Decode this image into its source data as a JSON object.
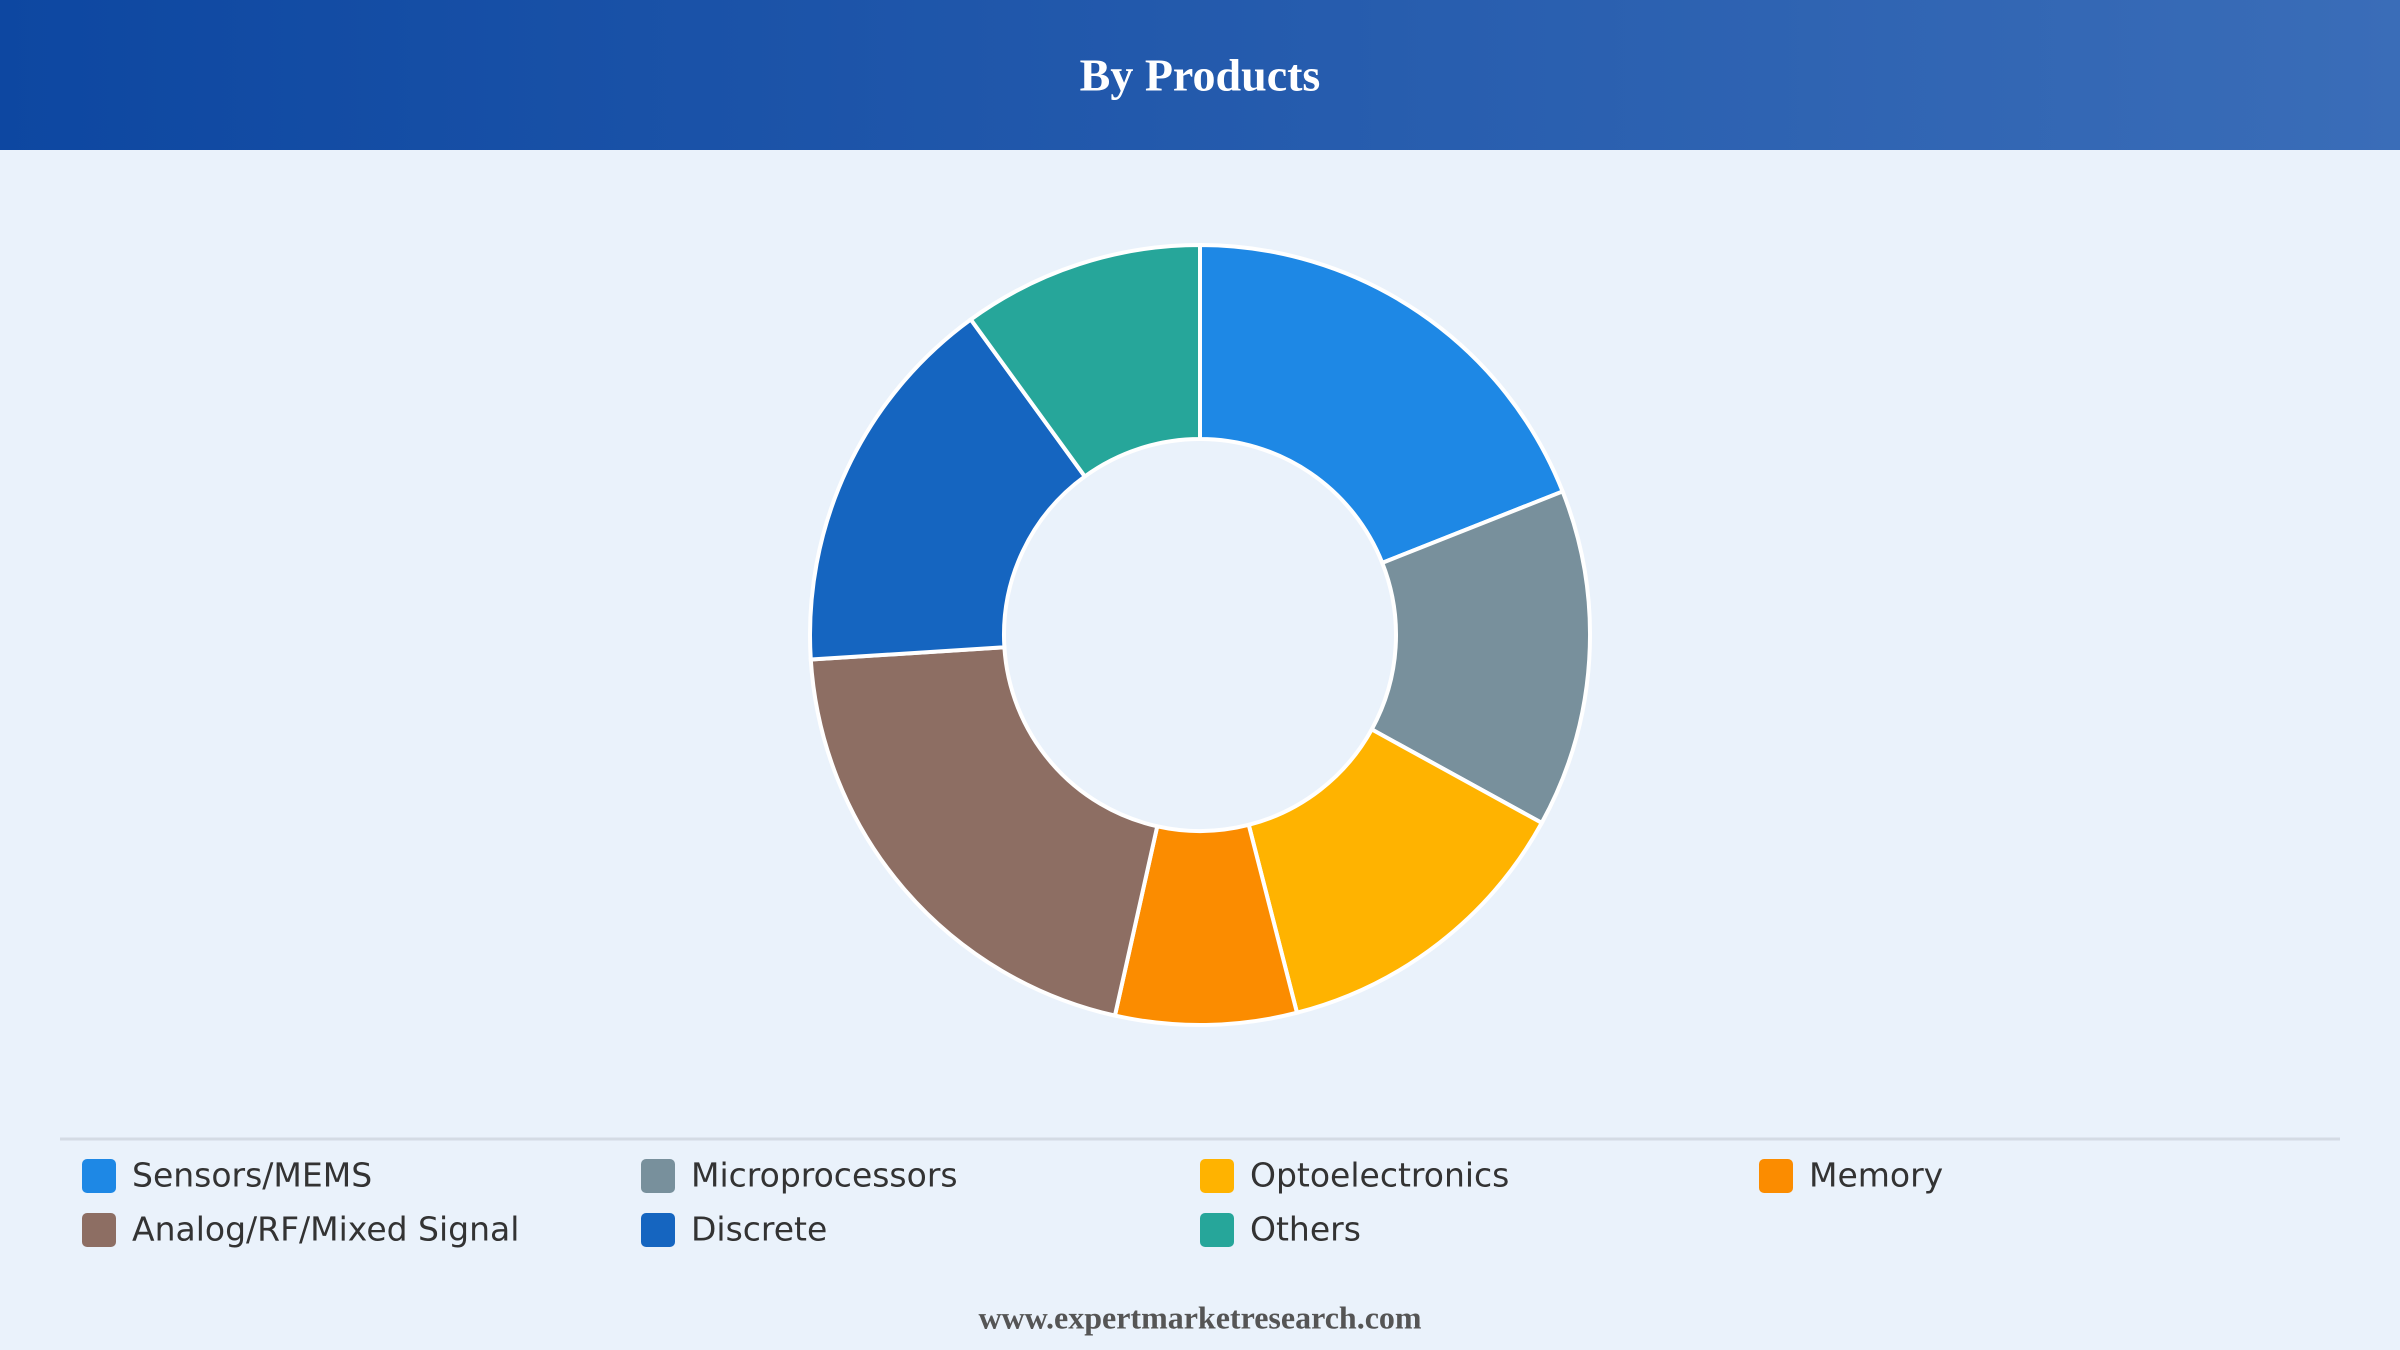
{
  "chart_data": {
    "type": "donut",
    "title": "By Products",
    "categories": [
      "Sensors/MEMS",
      "Microprocessors",
      "Optoelectronics",
      "Memory",
      "Analog/RF/Mixed Signal",
      "Discrete",
      "Others"
    ],
    "values": [
      19,
      14,
      13,
      7.5,
      20.5,
      16,
      10
    ],
    "colors": [
      "#1e88e5",
      "#78909c",
      "#ffb300",
      "#fb8c00",
      "#8d6e63",
      "#1565c0",
      "#26a69a"
    ]
  },
  "footer": "www.expertmarketresearch.com"
}
